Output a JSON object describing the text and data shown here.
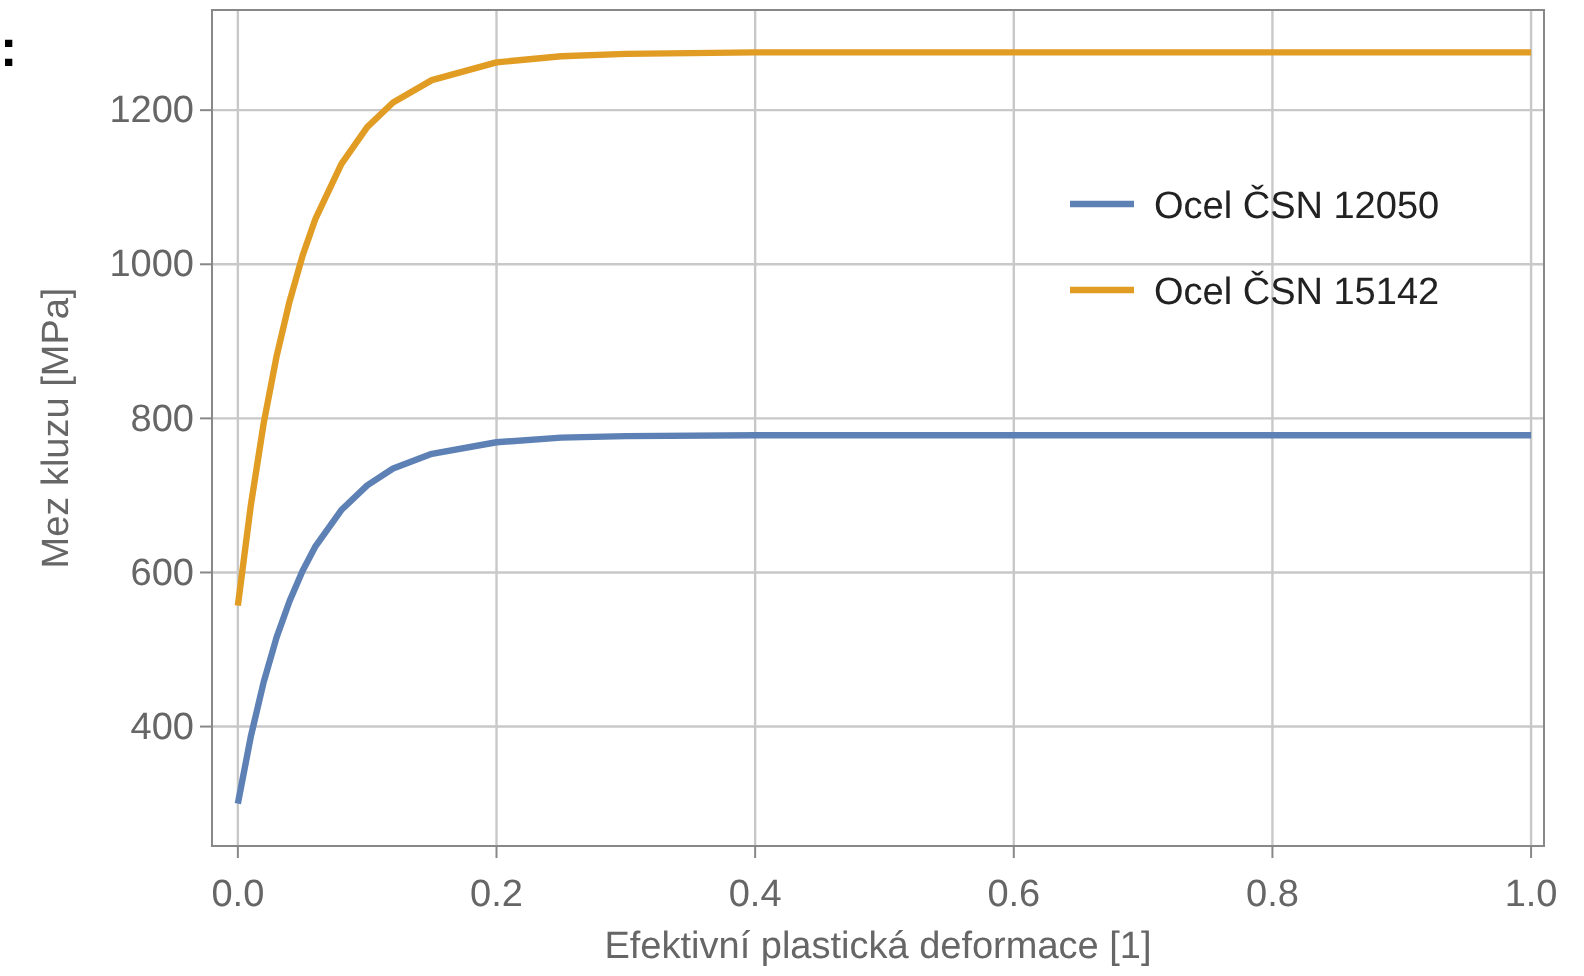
{
  "chart_data": {
    "type": "line",
    "xlabel": "Efektivní plastická deformace [1]",
    "ylabel": "Mez kluzu [MPa]",
    "x": [
      0,
      0.01,
      0.02,
      0.03,
      0.04,
      0.05,
      0.06,
      0.08,
      0.1,
      0.12,
      0.15,
      0.2,
      0.25,
      0.3,
      0.4,
      0.5,
      0.6,
      0.8,
      1.0
    ],
    "series": [
      {
        "name": "Ocel ČSN 12050",
        "color": "#5e81b5",
        "values": [
          300,
          387,
          458,
          516,
          563,
          602,
          634,
          681,
          713,
          735,
          754,
          769,
          775,
          777,
          778,
          778,
          778,
          778,
          778
        ]
      },
      {
        "name": "Ocel ČSN 15142",
        "color": "#e19c24",
        "values": [
          557,
          687,
          794,
          881,
          952,
          1011,
          1059,
          1130,
          1178,
          1210,
          1239,
          1262,
          1270,
          1273,
          1275,
          1275,
          1275,
          1275,
          1275
        ]
      }
    ],
    "xlim": [
      -0.02,
      1.01
    ],
    "ylim": [
      245,
      1330
    ],
    "xticks": [
      {
        "value": 0,
        "label": "0.0"
      },
      {
        "value": 0.2,
        "label": "0.2"
      },
      {
        "value": 0.4,
        "label": "0.4"
      },
      {
        "value": 0.6,
        "label": "0.6"
      },
      {
        "value": 0.8,
        "label": "0.8"
      },
      {
        "value": 1.0,
        "label": "1.0"
      }
    ],
    "yticks": [
      400,
      600,
      800,
      1000,
      1200
    ],
    "grid": true,
    "legend": "top right",
    "line_style": "solid",
    "marker": "none",
    "annotations": [
      ":"
    ]
  }
}
